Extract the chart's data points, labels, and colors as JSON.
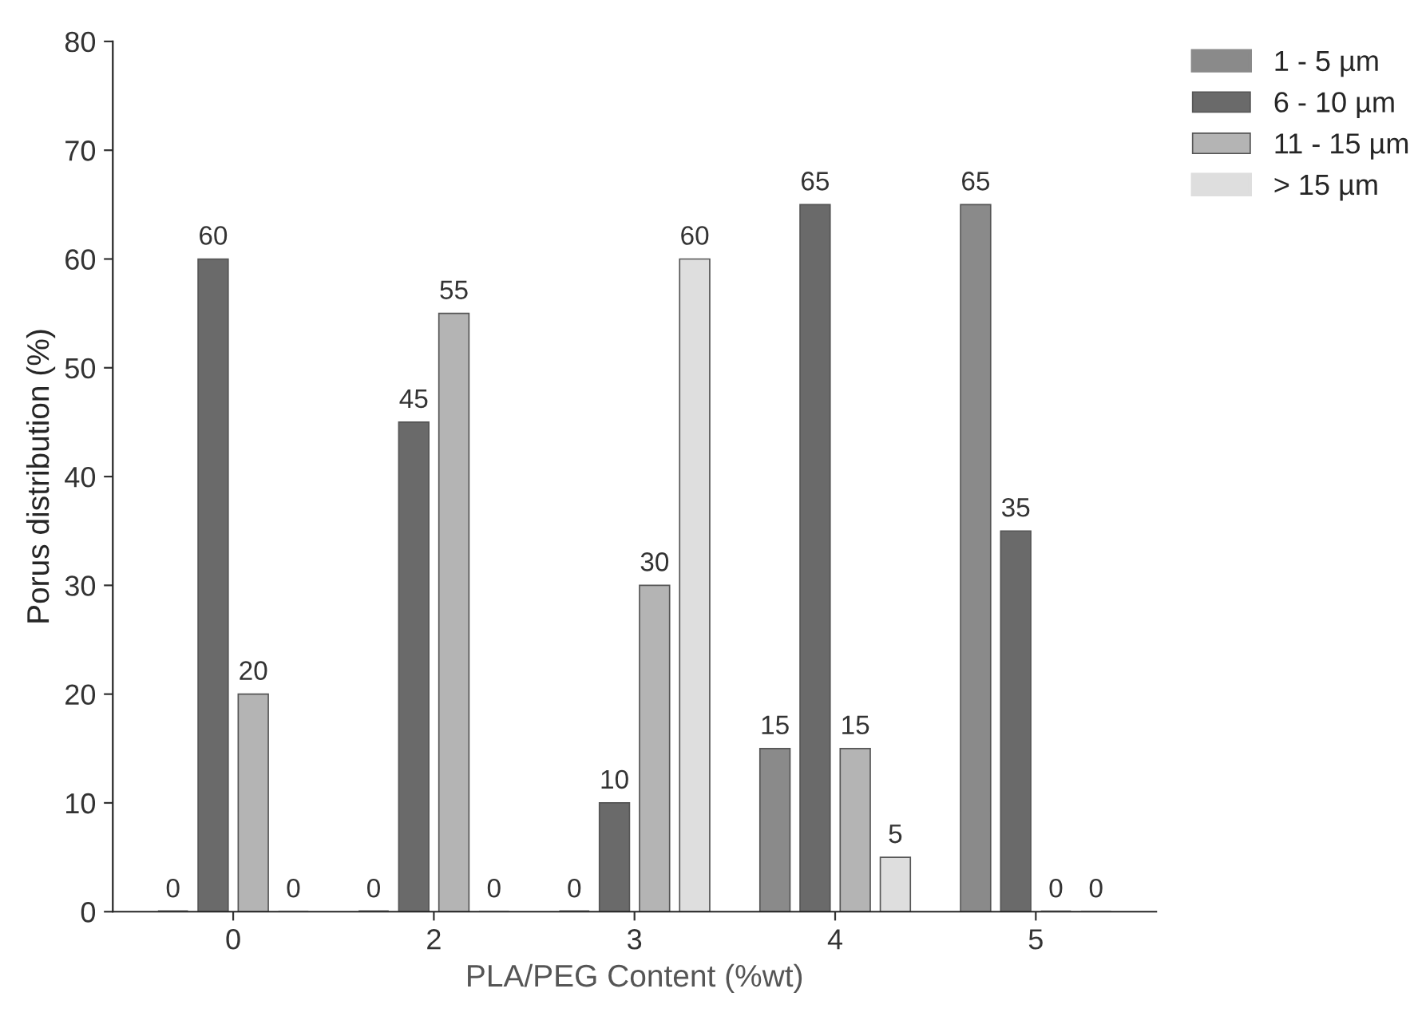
{
  "chart_data": {
    "type": "bar",
    "xlabel": "PLA/PEG Content (%wt)",
    "ylabel": "Porus distribution (%)",
    "categories": [
      "0",
      "2",
      "3",
      "4",
      "5"
    ],
    "series": [
      {
        "name": "1 - 5 µm",
        "color": "#8a8a8a",
        "values": [
          0,
          0,
          0,
          15,
          65
        ]
      },
      {
        "name": "6 - 10 µm",
        "color": "#6a6a6a",
        "values": [
          60,
          45,
          10,
          65,
          35
        ]
      },
      {
        "name": "11 - 15 µm",
        "color": "#b4b4b4",
        "values": [
          20,
          55,
          30,
          15,
          0
        ]
      },
      {
        "name": "> 15 µm",
        "color": "#dedede",
        "values": [
          0,
          0,
          60,
          5,
          0
        ]
      }
    ],
    "ylim": [
      0,
      80
    ],
    "yticks": [
      0,
      10,
      20,
      30,
      40,
      50,
      60,
      70,
      80
    ],
    "data_labels": true,
    "legend": "top right",
    "grid": false
  }
}
